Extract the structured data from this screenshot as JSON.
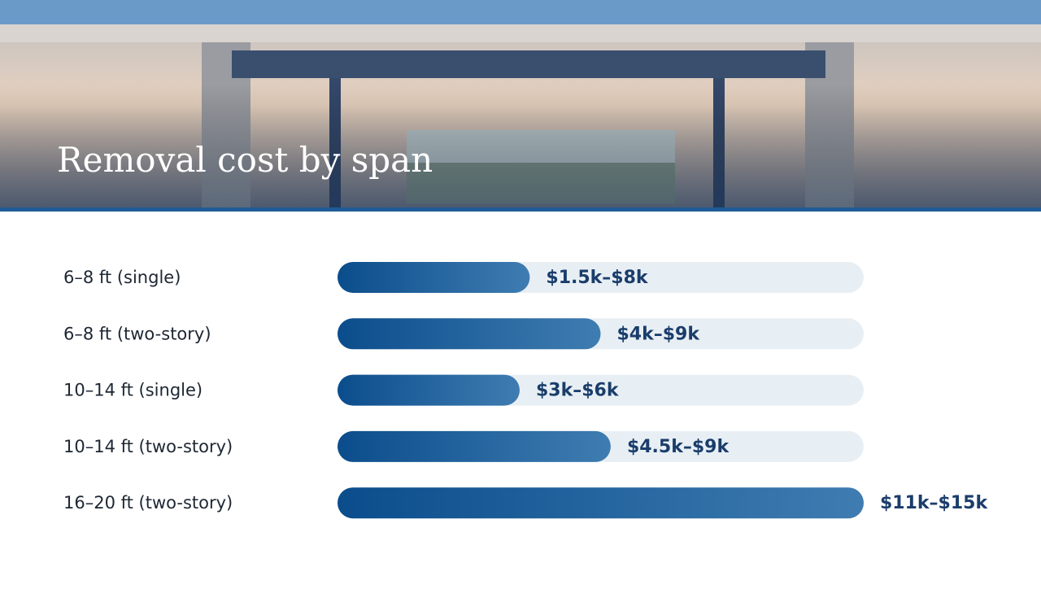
{
  "chart_data": {
    "type": "range-bar",
    "title": "Removal cost by span",
    "categories": [
      "6–8 ft (single)",
      "6–8 ft (two-story)",
      "10–14 ft (single)",
      "10–14 ft (two-story)",
      "16–20 ft (two-story)"
    ],
    "low": [
      1.5,
      4,
      3,
      4.5,
      11
    ],
    "high": [
      8,
      9,
      6,
      9,
      15
    ],
    "value_labels": [
      "$1.5k–$8k",
      "$4k–$9k",
      "$3k–$6k",
      "$4.5k–$9k",
      "$11k–$15k"
    ],
    "xlim": [
      0,
      13
    ],
    "colors": [
      "#0b4d8c",
      "#3f7cb1"
    ],
    "track_color": "#e8eff4"
  }
}
